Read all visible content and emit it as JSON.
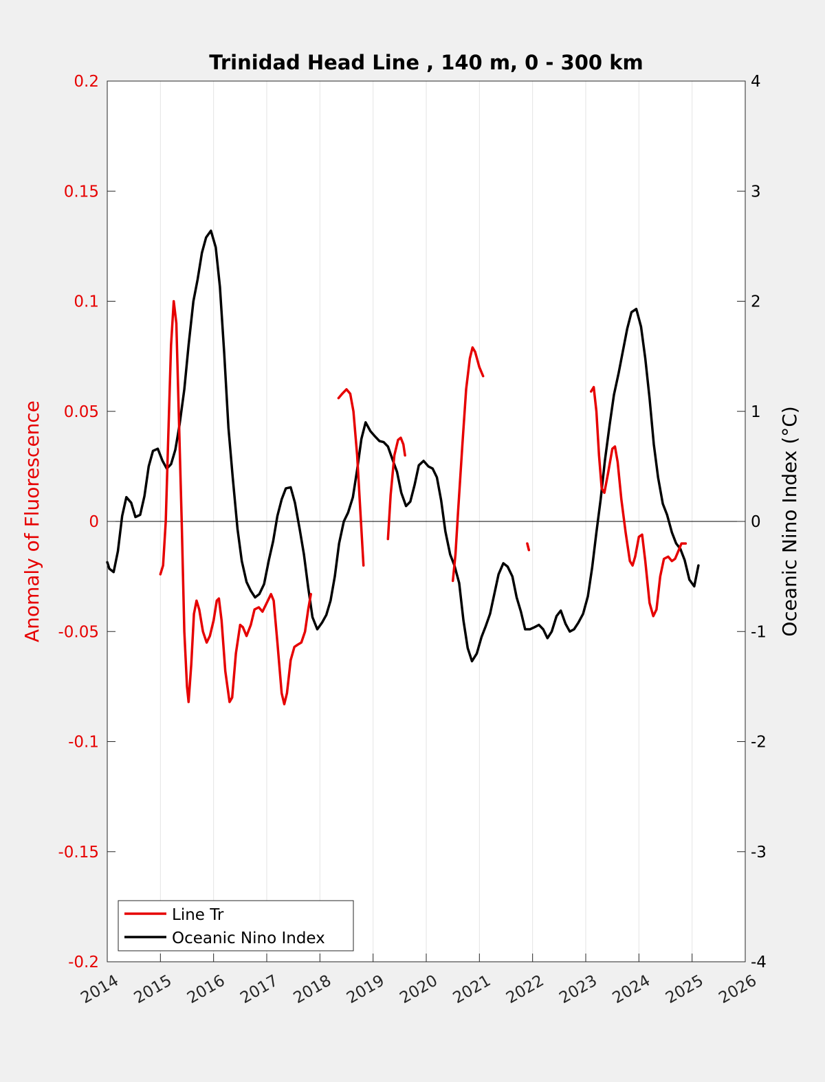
{
  "chart_data": {
    "type": "line",
    "title": "Trinidad Head Line , 140 m, 0 - 300 km",
    "ylabel_left": "Anomaly of Fluorescence",
    "ylabel_right": "Oceanic Nino Index (°C)",
    "xlabel": "",
    "xlim": [
      2014,
      2026
    ],
    "ylim_left": [
      -0.2,
      0.2
    ],
    "ylim_right": [
      -4,
      4
    ],
    "x_ticks": [
      "2014",
      "2015",
      "2016",
      "2017",
      "2018",
      "2019",
      "2020",
      "2021",
      "2022",
      "2023",
      "2024",
      "2025",
      "2026"
    ],
    "y_left_ticks": [
      "-0.2",
      "-0.15",
      "-0.1",
      "-0.05",
      "0",
      "0.05",
      "0.1",
      "0.15",
      "0.2"
    ],
    "y_right_ticks": [
      "-4",
      "-3",
      "-2",
      "-1",
      "0",
      "1",
      "2",
      "3",
      "4"
    ],
    "grid": "vertical",
    "zero_line": true,
    "legend_position": "bottom-left",
    "colors": {
      "fluorescence": "#e60000",
      "oni": "#000000",
      "left_axis": "#e60000",
      "right_axis": "#000000"
    },
    "series": [
      {
        "name": "Line Tr",
        "axis": "left",
        "segments": [
          [
            [
              2015.0,
              -0.024
            ],
            [
              2015.05,
              -0.02
            ],
            [
              2015.1,
              0.0
            ],
            [
              2015.15,
              0.04
            ],
            [
              2015.2,
              0.08
            ],
            [
              2015.25,
              0.1
            ],
            [
              2015.3,
              0.09
            ],
            [
              2015.35,
              0.045
            ],
            [
              2015.4,
              0.0
            ],
            [
              2015.45,
              -0.05
            ],
            [
              2015.5,
              -0.075
            ],
            [
              2015.53,
              -0.082
            ],
            [
              2015.58,
              -0.065
            ],
            [
              2015.63,
              -0.042
            ],
            [
              2015.68,
              -0.036
            ],
            [
              2015.73,
              -0.04
            ],
            [
              2015.8,
              -0.05
            ],
            [
              2015.87,
              -0.055
            ],
            [
              2015.93,
              -0.052
            ],
            [
              2016.0,
              -0.045
            ],
            [
              2016.06,
              -0.036
            ],
            [
              2016.1,
              -0.035
            ],
            [
              2016.15,
              -0.045
            ],
            [
              2016.22,
              -0.068
            ],
            [
              2016.3,
              -0.082
            ],
            [
              2016.35,
              -0.08
            ],
            [
              2016.42,
              -0.06
            ],
            [
              2016.5,
              -0.047
            ],
            [
              2016.55,
              -0.048
            ],
            [
              2016.62,
              -0.052
            ],
            [
              2016.7,
              -0.047
            ],
            [
              2016.77,
              -0.04
            ],
            [
              2016.85,
              -0.039
            ],
            [
              2016.92,
              -0.041
            ],
            [
              2017.0,
              -0.037
            ],
            [
              2017.08,
              -0.033
            ],
            [
              2017.13,
              -0.036
            ],
            [
              2017.2,
              -0.055
            ],
            [
              2017.28,
              -0.078
            ],
            [
              2017.33,
              -0.083
            ],
            [
              2017.38,
              -0.078
            ],
            [
              2017.45,
              -0.063
            ],
            [
              2017.52,
              -0.057
            ],
            [
              2017.58,
              -0.056
            ],
            [
              2017.65,
              -0.055
            ],
            [
              2017.72,
              -0.05
            ],
            [
              2017.78,
              -0.04
            ],
            [
              2017.83,
              -0.033
            ]
          ],
          [
            [
              2018.35,
              0.056
            ],
            [
              2018.42,
              0.058
            ],
            [
              2018.5,
              0.06
            ],
            [
              2018.57,
              0.058
            ],
            [
              2018.63,
              0.05
            ],
            [
              2018.7,
              0.03
            ],
            [
              2018.76,
              0.005
            ],
            [
              2018.82,
              -0.02
            ]
          ],
          [
            [
              2019.28,
              -0.008
            ],
            [
              2019.33,
              0.012
            ],
            [
              2019.4,
              0.03
            ],
            [
              2019.47,
              0.037
            ],
            [
              2019.52,
              0.038
            ],
            [
              2019.57,
              0.035
            ],
            [
              2019.6,
              0.03
            ]
          ],
          [
            [
              2020.5,
              -0.027
            ],
            [
              2020.55,
              -0.015
            ],
            [
              2020.6,
              0.005
            ],
            [
              2020.68,
              0.035
            ],
            [
              2020.75,
              0.06
            ],
            [
              2020.82,
              0.074
            ],
            [
              2020.87,
              0.079
            ],
            [
              2020.92,
              0.077
            ],
            [
              2021.0,
              0.07
            ],
            [
              2021.07,
              0.066
            ]
          ],
          [
            [
              2021.9,
              -0.01
            ],
            [
              2021.93,
              -0.013
            ]
          ],
          [
            [
              2023.1,
              0.059
            ],
            [
              2023.15,
              0.061
            ],
            [
              2023.2,
              0.05
            ],
            [
              2023.25,
              0.03
            ],
            [
              2023.3,
              0.015
            ],
            [
              2023.35,
              0.013
            ],
            [
              2023.42,
              0.022
            ],
            [
              2023.5,
              0.033
            ],
            [
              2023.55,
              0.034
            ],
            [
              2023.6,
              0.027
            ],
            [
              2023.67,
              0.01
            ],
            [
              2023.75,
              -0.005
            ],
            [
              2023.83,
              -0.018
            ],
            [
              2023.88,
              -0.02
            ],
            [
              2023.93,
              -0.016
            ],
            [
              2024.0,
              -0.007
            ],
            [
              2024.06,
              -0.006
            ],
            [
              2024.12,
              -0.018
            ],
            [
              2024.2,
              -0.037
            ],
            [
              2024.27,
              -0.043
            ],
            [
              2024.33,
              -0.04
            ],
            [
              2024.4,
              -0.025
            ],
            [
              2024.47,
              -0.017
            ],
            [
              2024.55,
              -0.016
            ],
            [
              2024.62,
              -0.018
            ],
            [
              2024.68,
              -0.017
            ],
            [
              2024.75,
              -0.013
            ],
            [
              2024.8,
              -0.01
            ],
            [
              2024.88,
              -0.01
            ]
          ]
        ]
      },
      {
        "name": "Oceanic Nino Index",
        "axis": "right",
        "segments": [
          [
            [
              2014.0,
              -0.37
            ],
            [
              2014.04,
              -0.43
            ],
            [
              2014.12,
              -0.46
            ],
            [
              2014.2,
              -0.27
            ],
            [
              2014.28,
              0.05
            ],
            [
              2014.36,
              0.22
            ],
            [
              2014.45,
              0.17
            ],
            [
              2014.53,
              0.04
            ],
            [
              2014.62,
              0.06
            ],
            [
              2014.7,
              0.23
            ],
            [
              2014.78,
              0.5
            ],
            [
              2014.86,
              0.64
            ],
            [
              2014.95,
              0.66
            ],
            [
              2015.04,
              0.55
            ],
            [
              2015.12,
              0.48
            ],
            [
              2015.2,
              0.52
            ],
            [
              2015.28,
              0.65
            ],
            [
              2015.36,
              0.88
            ],
            [
              2015.45,
              1.2
            ],
            [
              2015.53,
              1.6
            ],
            [
              2015.62,
              2.0
            ],
            [
              2015.7,
              2.2
            ],
            [
              2015.78,
              2.44
            ],
            [
              2015.86,
              2.58
            ],
            [
              2015.95,
              2.64
            ],
            [
              2016.04,
              2.49
            ],
            [
              2016.12,
              2.13
            ],
            [
              2016.2,
              1.53
            ],
            [
              2016.28,
              0.85
            ],
            [
              2016.36,
              0.4
            ],
            [
              2016.45,
              -0.07
            ],
            [
              2016.53,
              -0.36
            ],
            [
              2016.62,
              -0.55
            ],
            [
              2016.7,
              -0.63
            ],
            [
              2016.78,
              -0.69
            ],
            [
              2016.86,
              -0.66
            ],
            [
              2016.95,
              -0.57
            ],
            [
              2017.04,
              -0.35
            ],
            [
              2017.12,
              -0.18
            ],
            [
              2017.2,
              0.05
            ],
            [
              2017.28,
              0.2
            ],
            [
              2017.36,
              0.3
            ],
            [
              2017.45,
              0.31
            ],
            [
              2017.53,
              0.17
            ],
            [
              2017.62,
              -0.07
            ],
            [
              2017.7,
              -0.3
            ],
            [
              2017.78,
              -0.6
            ],
            [
              2017.86,
              -0.87
            ],
            [
              2017.95,
              -0.98
            ],
            [
              2018.04,
              -0.92
            ],
            [
              2018.12,
              -0.85
            ],
            [
              2018.2,
              -0.72
            ],
            [
              2018.28,
              -0.5
            ],
            [
              2018.36,
              -0.2
            ],
            [
              2018.45,
              0.0
            ],
            [
              2018.53,
              0.08
            ],
            [
              2018.62,
              0.22
            ],
            [
              2018.7,
              0.47
            ],
            [
              2018.78,
              0.75
            ],
            [
              2018.86,
              0.9
            ],
            [
              2018.95,
              0.82
            ],
            [
              2019.04,
              0.77
            ],
            [
              2019.12,
              0.73
            ],
            [
              2019.2,
              0.72
            ],
            [
              2019.28,
              0.68
            ],
            [
              2019.36,
              0.57
            ],
            [
              2019.45,
              0.45
            ],
            [
              2019.53,
              0.26
            ],
            [
              2019.62,
              0.14
            ],
            [
              2019.7,
              0.18
            ],
            [
              2019.78,
              0.33
            ],
            [
              2019.86,
              0.51
            ],
            [
              2019.95,
              0.55
            ],
            [
              2020.04,
              0.5
            ],
            [
              2020.12,
              0.48
            ],
            [
              2020.2,
              0.4
            ],
            [
              2020.28,
              0.19
            ],
            [
              2020.36,
              -0.09
            ],
            [
              2020.45,
              -0.3
            ],
            [
              2020.53,
              -0.4
            ],
            [
              2020.62,
              -0.56
            ],
            [
              2020.7,
              -0.9
            ],
            [
              2020.78,
              -1.15
            ],
            [
              2020.86,
              -1.27
            ],
            [
              2020.95,
              -1.2
            ],
            [
              2021.04,
              -1.05
            ],
            [
              2021.12,
              -0.95
            ],
            [
              2021.2,
              -0.84
            ],
            [
              2021.28,
              -0.66
            ],
            [
              2021.36,
              -0.48
            ],
            [
              2021.45,
              -0.38
            ],
            [
              2021.53,
              -0.41
            ],
            [
              2021.62,
              -0.5
            ],
            [
              2021.7,
              -0.69
            ],
            [
              2021.78,
              -0.82
            ],
            [
              2021.86,
              -0.98
            ],
            [
              2021.95,
              -0.98
            ],
            [
              2022.04,
              -0.96
            ],
            [
              2022.12,
              -0.94
            ],
            [
              2022.2,
              -0.98
            ],
            [
              2022.28,
              -1.06
            ],
            [
              2022.36,
              -1.0
            ],
            [
              2022.45,
              -0.86
            ],
            [
              2022.53,
              -0.81
            ],
            [
              2022.62,
              -0.93
            ],
            [
              2022.7,
              -1.0
            ],
            [
              2022.78,
              -0.98
            ],
            [
              2022.86,
              -0.92
            ],
            [
              2022.95,
              -0.84
            ],
            [
              2023.04,
              -0.68
            ],
            [
              2023.12,
              -0.42
            ],
            [
              2023.2,
              -0.1
            ],
            [
              2023.28,
              0.2
            ],
            [
              2023.36,
              0.55
            ],
            [
              2023.45,
              0.88
            ],
            [
              2023.53,
              1.15
            ],
            [
              2023.62,
              1.35
            ],
            [
              2023.7,
              1.55
            ],
            [
              2023.78,
              1.75
            ],
            [
              2023.86,
              1.9
            ],
            [
              2023.95,
              1.93
            ],
            [
              2024.04,
              1.77
            ],
            [
              2024.12,
              1.48
            ],
            [
              2024.2,
              1.12
            ],
            [
              2024.28,
              0.7
            ],
            [
              2024.36,
              0.4
            ],
            [
              2024.45,
              0.16
            ],
            [
              2024.53,
              0.06
            ],
            [
              2024.62,
              -0.1
            ],
            [
              2024.7,
              -0.2
            ],
            [
              2024.78,
              -0.25
            ],
            [
              2024.86,
              -0.35
            ],
            [
              2024.95,
              -0.53
            ],
            [
              2025.04,
              -0.59
            ],
            [
              2025.12,
              -0.4
            ]
          ]
        ]
      }
    ]
  }
}
